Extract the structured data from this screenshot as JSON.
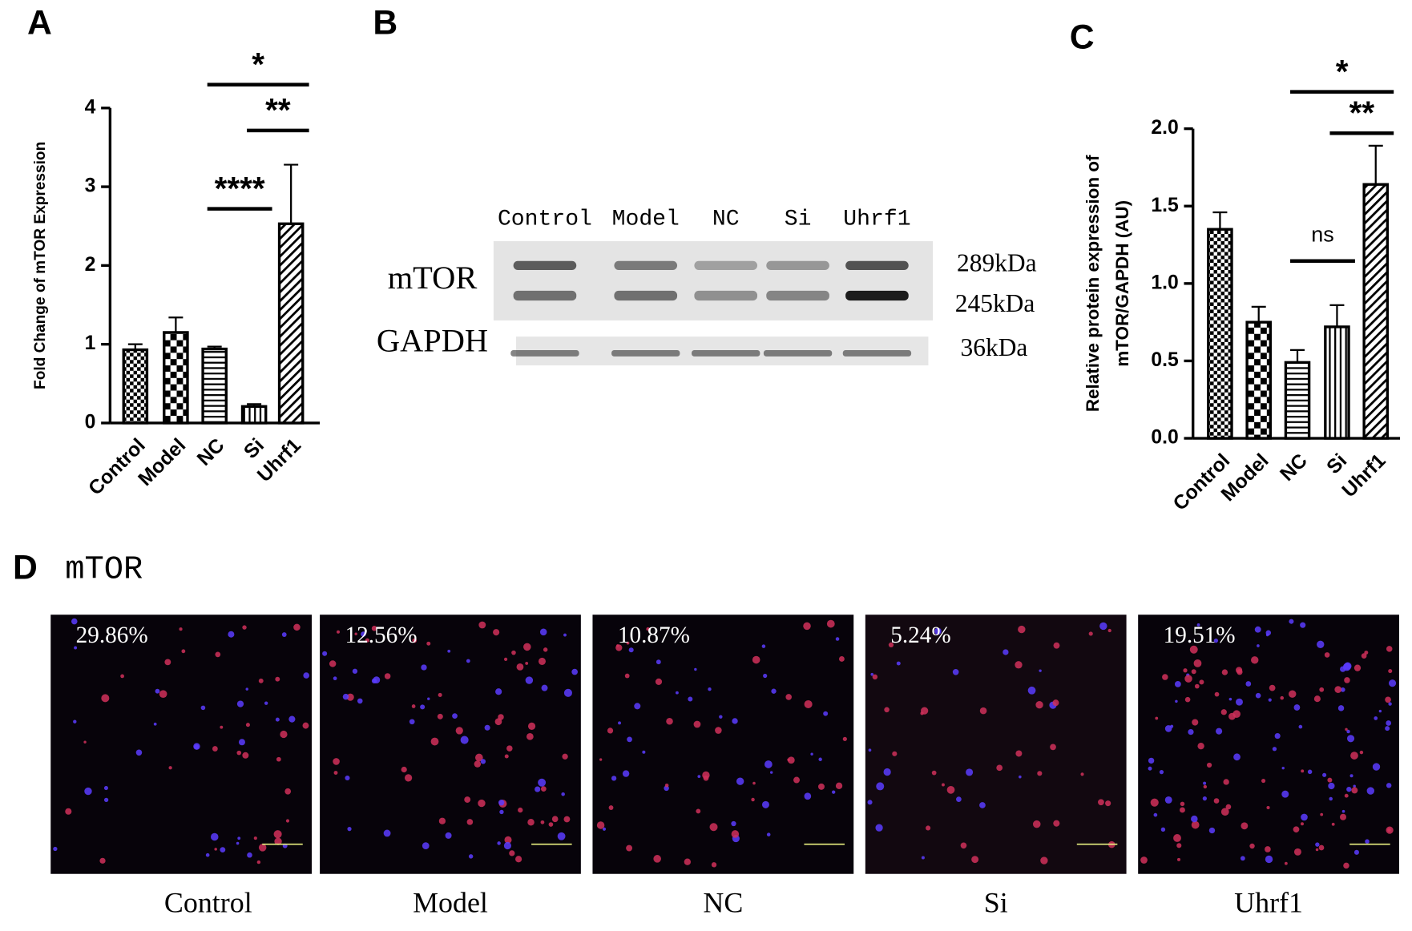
{
  "panel_labels": [
    "A",
    "B",
    "C",
    "D"
  ],
  "chart_data": [
    {
      "type": "bar",
      "y_label": "Fold Change of mTOR Expression",
      "categories": [
        "Control",
        "Model",
        "NC",
        "Si",
        "Uhrf1"
      ],
      "values": [
        0.93,
        1.15,
        0.94,
        0.21,
        2.53
      ],
      "errors": [
        0.07,
        0.19,
        0.03,
        0.03,
        0.75
      ],
      "ylim": [
        0,
        4
      ],
      "yticks": [
        0,
        1,
        2,
        3,
        4
      ],
      "comparisons": [
        {
          "label": "*",
          "groups": [
            "NC",
            "Uhrf1"
          ]
        },
        {
          "label": "**",
          "groups": [
            "Si",
            "Uhrf1"
          ]
        },
        {
          "label": "****",
          "groups": [
            "NC",
            "Si"
          ]
        }
      ]
    },
    {
      "type": "bar",
      "y_label": [
        "Relative protein expression of",
        "mTOR/GAPDH (AU)"
      ],
      "categories": [
        "Control",
        "Model",
        "NC",
        "Si",
        "Uhrf1"
      ],
      "values": [
        1.35,
        0.75,
        0.49,
        0.72,
        1.64
      ],
      "errors": [
        0.11,
        0.1,
        0.08,
        0.14,
        0.25
      ],
      "ylim": [
        0,
        2
      ],
      "yticks": [
        {
          "value": 0,
          "label": "0.0"
        },
        0.5,
        {
          "value": 1,
          "label": "1.0"
        },
        1.5,
        {
          "value": 2,
          "label": "2.0"
        }
      ],
      "comparisons": [
        {
          "label": "*",
          "groups": [
            "NC",
            "Uhrf1"
          ]
        },
        {
          "label": "**",
          "groups": [
            "Si",
            "Uhrf1"
          ]
        },
        {
          "label": "ns",
          "groups": [
            "NC",
            "Si"
          ]
        }
      ]
    }
  ],
  "blot": {
    "lanes": [
      "Control",
      "Model",
      "NC",
      "Si",
      "Uhrf1"
    ],
    "proteins": [
      "mTOR",
      "GAPDH"
    ],
    "sizes": [
      "289kDa",
      "245kDa",
      "36kDa"
    ]
  },
  "images": {
    "title": "mTOR",
    "labels": [
      "Control",
      "Model",
      "NC",
      "Si",
      "Uhrf1"
    ],
    "percents": [
      "29.86%",
      "12.56%",
      "10.87%",
      "5.24%",
      "19.51%"
    ]
  }
}
